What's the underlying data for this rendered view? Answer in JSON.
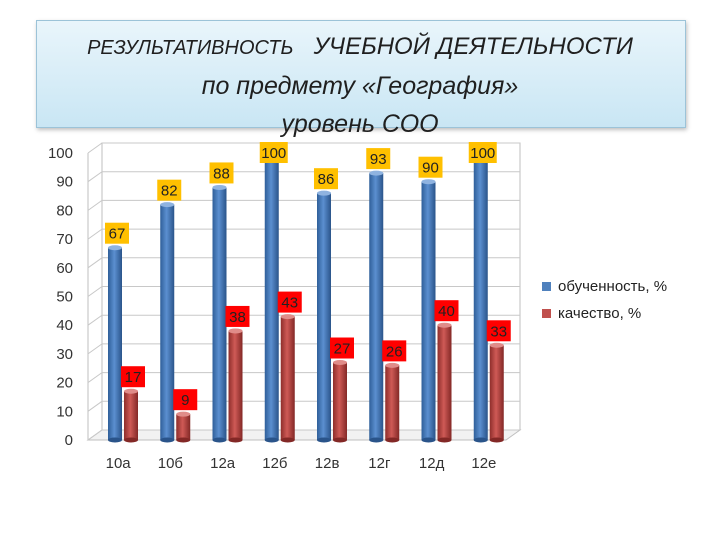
{
  "title": {
    "line1_part1": "РЕЗУЛЬТАТИВНОСТЬ",
    "line1_part2": "УЧЕБНОЙ ДЕЯТЕЛЬНОСТИ",
    "line2": "по предмету «География»",
    "line3": "уровень СОО"
  },
  "colors": {
    "series1": "#4F81BD",
    "series2": "#C0504D",
    "label_blue_bg": "#FFC000",
    "label_red_bg": "#FF0000"
  },
  "chart_data": {
    "type": "bar",
    "categories": [
      "10а",
      "10б",
      "12а",
      "12б",
      "12в",
      "12г",
      "12д",
      "12е"
    ],
    "series": [
      {
        "name": "обученность, %",
        "values": [
          67,
          82,
          88,
          100,
          86,
          93,
          90,
          100
        ]
      },
      {
        "name": "качество, %",
        "values": [
          17,
          9,
          38,
          43,
          27,
          26,
          40,
          33
        ]
      }
    ],
    "ylim": [
      0,
      100
    ],
    "yticks": [
      0,
      10,
      20,
      30,
      40,
      50,
      60,
      70,
      80,
      90,
      100
    ],
    "grid": true,
    "legend": "right",
    "data_labels": true
  }
}
